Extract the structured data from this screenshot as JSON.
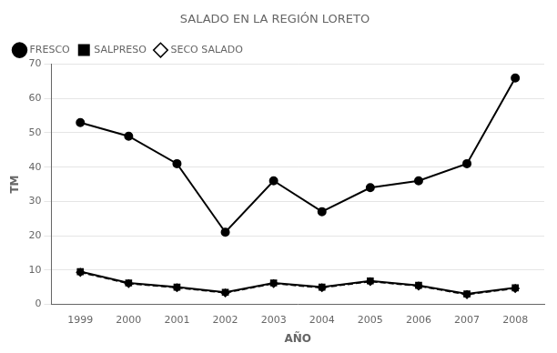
{
  "chart_data": {
    "type": "line",
    "title": "SALADO EN LA REGIÓN LORETO",
    "xlabel": "AÑO",
    "ylabel": "TM",
    "x": [
      1999,
      2000,
      2001,
      2002,
      2003,
      2004,
      2005,
      2006,
      2007,
      2008
    ],
    "series": [
      {
        "name": "FRESCO",
        "color": "black",
        "marker": "circle",
        "line_style": "solid",
        "values": [
          53,
          49,
          41,
          21,
          36,
          27,
          34,
          36,
          41,
          66
        ]
      },
      {
        "name": "SALPRESO",
        "color": "black",
        "marker": "square",
        "line_style": "solid",
        "values": [
          9.5,
          6.2,
          5.0,
          3.5,
          6.2,
          5.0,
          6.8,
          5.5,
          3.0,
          4.8
        ]
      },
      {
        "name": "SECO SALADO",
        "color": "black",
        "marker": "diamond",
        "line_style": "dashed",
        "values": [
          9.3,
          6.0,
          4.8,
          3.3,
          6.0,
          4.8,
          6.6,
          5.3,
          2.8,
          4.6
        ]
      }
    ],
    "xlim": [
      1998.4,
      2008.6
    ],
    "xticks": [
      1999,
      2000,
      2001,
      2002,
      2003,
      2004,
      2005,
      2006,
      2007,
      2008
    ],
    "ylim": [
      0,
      70
    ],
    "yticks": [
      0,
      10,
      20,
      30,
      40,
      50,
      60,
      70
    ],
    "grid": "y",
    "legend": "upper left"
  }
}
